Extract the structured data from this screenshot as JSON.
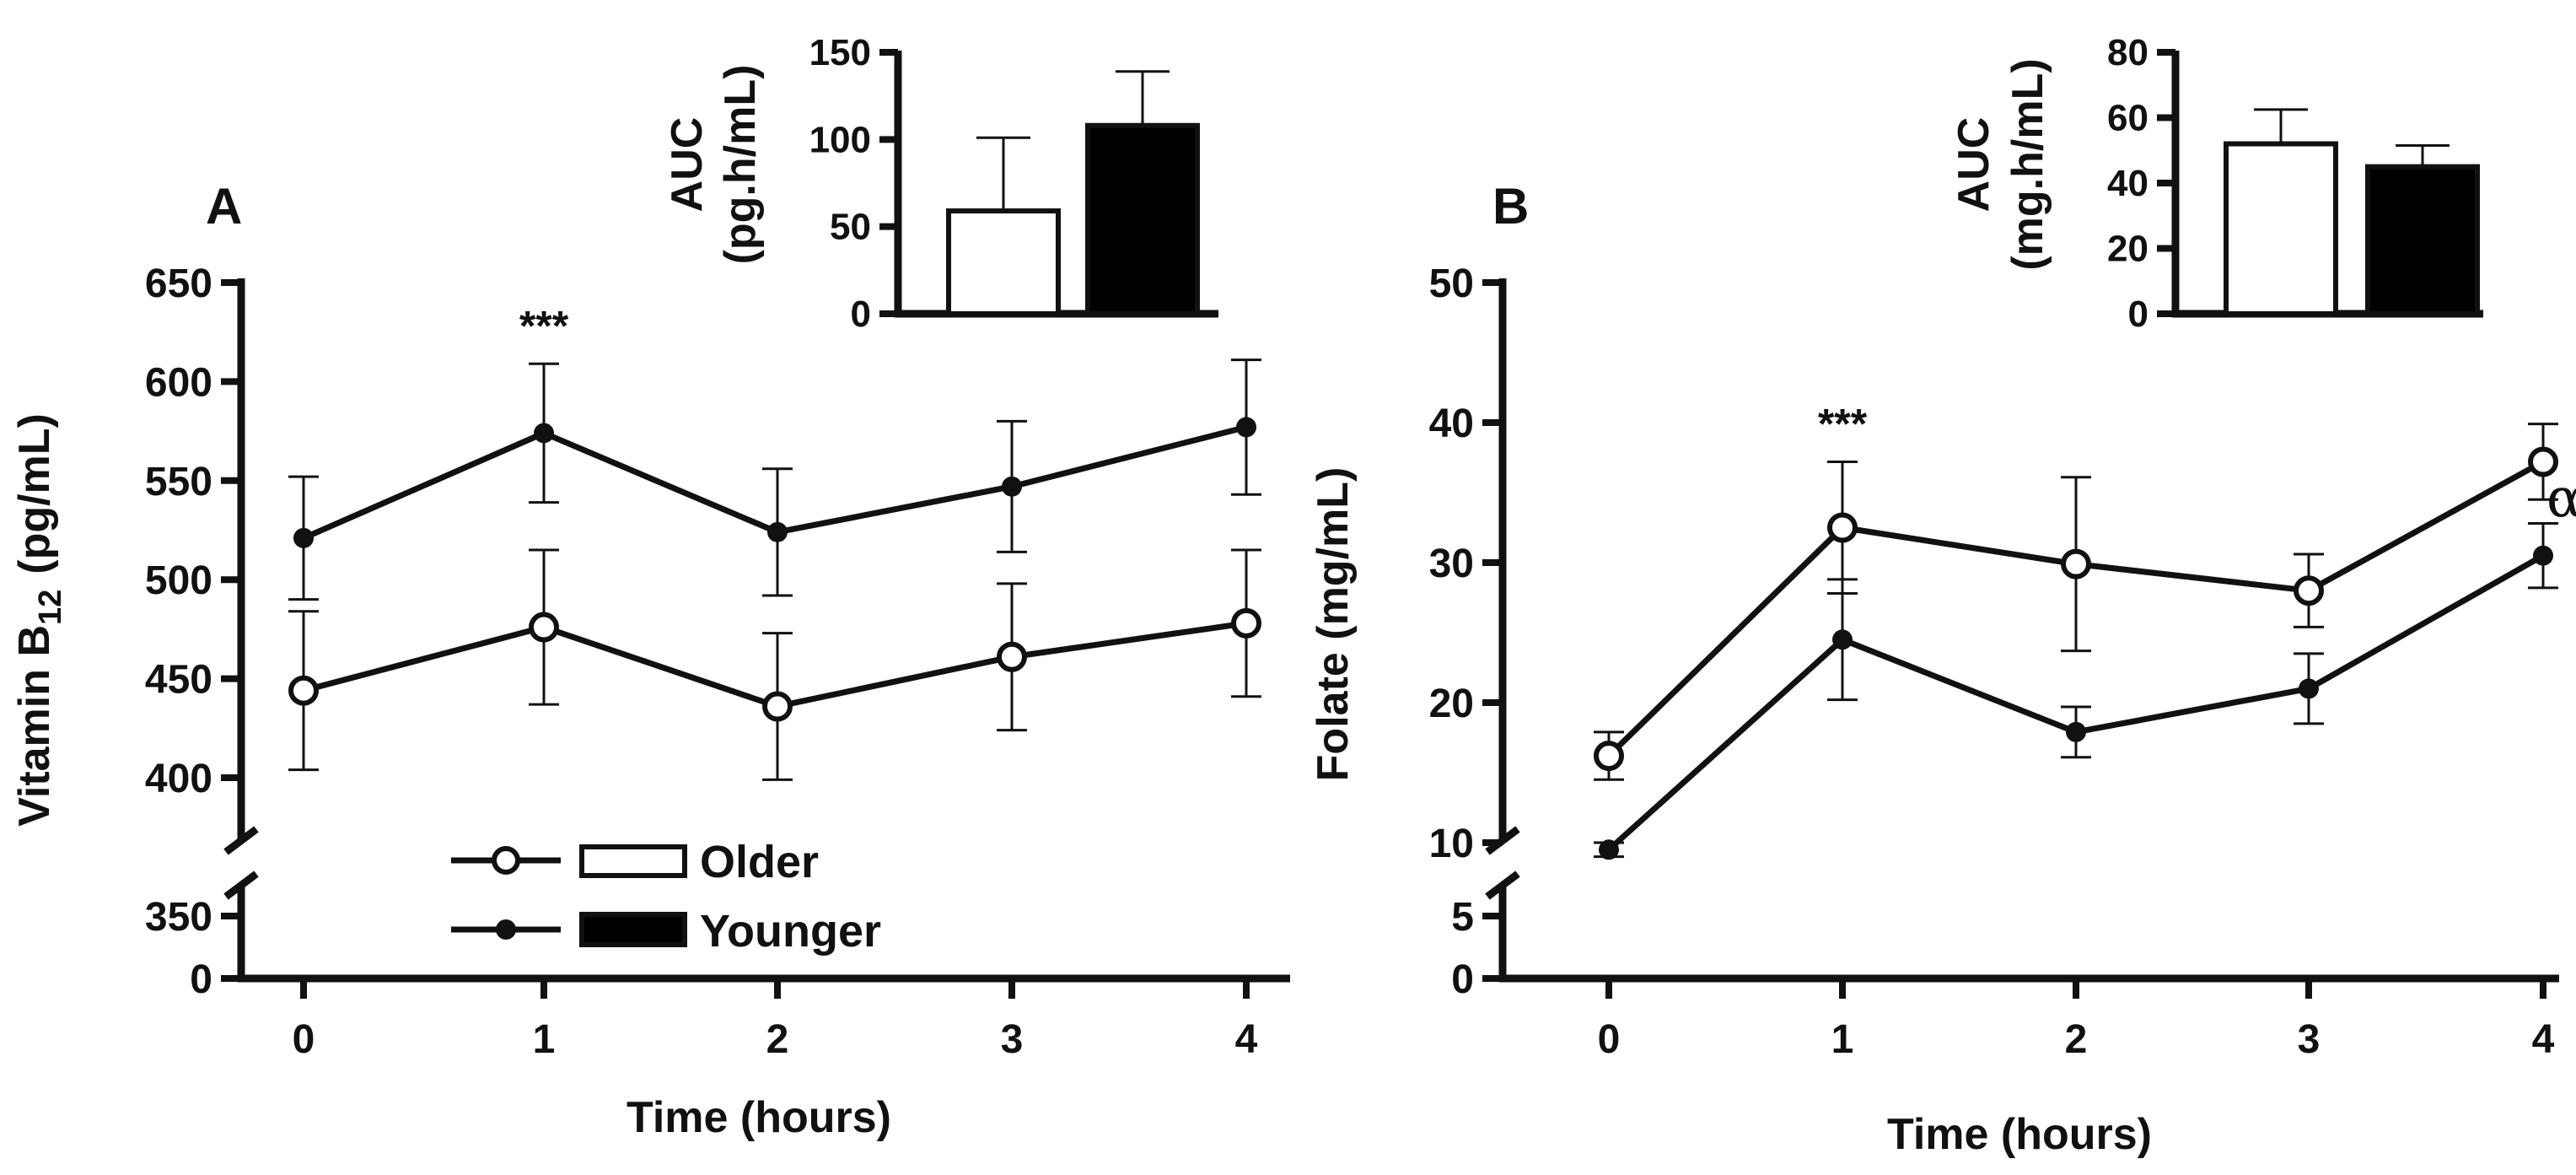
{
  "chart_data": [
    {
      "id": "A",
      "type": "line",
      "panel_label": "A",
      "xlabel": "Time (hours)",
      "ylabel": "Vitamin B12 (pg/mL)",
      "ylabel_main": "Vitamin B",
      "ylabel_sub": "12",
      "ylabel_unit": "(pg/mL)",
      "x": [
        0,
        1,
        2,
        3,
        4
      ],
      "x_ticks": [
        "0",
        "1",
        "2",
        "3",
        "4"
      ],
      "y_upper_range": [
        380,
        650
      ],
      "y_upper_ticks": [
        400,
        450,
        500,
        550,
        600,
        650
      ],
      "y_lower_ticks": [
        0,
        350
      ],
      "y_axis_break": true,
      "series": [
        {
          "name": "Older",
          "marker": "open-circle",
          "values": [
            444,
            476,
            436,
            461,
            478
          ],
          "errors": [
            40,
            39,
            37,
            37,
            37
          ]
        },
        {
          "name": "Younger",
          "marker": "filled-circle",
          "values": [
            521,
            574,
            524,
            547,
            577
          ],
          "errors": [
            31,
            35,
            32,
            33,
            34
          ]
        }
      ],
      "annotations": [
        {
          "x": 1,
          "text": "***"
        }
      ],
      "legend": {
        "position": "bottom-center",
        "entries": [
          {
            "name": "Older",
            "line_marker": "open-circle",
            "bar_fill": "#ffffff"
          },
          {
            "name": "Younger",
            "line_marker": "filled-circle",
            "bar_fill": "#000000"
          }
        ]
      },
      "inset": {
        "type": "bar",
        "ylabel_line1": "AUC",
        "ylabel_line2": "(pg.h/mL)",
        "ylim": [
          0,
          150
        ],
        "y_ticks": [
          0,
          50,
          100,
          150
        ],
        "bars": [
          {
            "name": "Older",
            "value": 59,
            "error": 42,
            "fill": "#ffffff"
          },
          {
            "name": "Younger",
            "value": 108,
            "error": 31,
            "fill": "#000000"
          }
        ]
      }
    },
    {
      "id": "B",
      "type": "line",
      "panel_label": "B",
      "xlabel": "Time (hours)",
      "ylabel": "Folate (mg/mL)",
      "x": [
        0,
        1,
        2,
        3,
        4
      ],
      "x_ticks": [
        "0",
        "1",
        "2",
        "3",
        "4"
      ],
      "y_upper_range": [
        8,
        50
      ],
      "y_upper_ticks": [
        10,
        20,
        30,
        40,
        50
      ],
      "y_lower_ticks": [
        0,
        5
      ],
      "y_axis_break": true,
      "series": [
        {
          "name": "Older",
          "marker": "open-circle",
          "values": [
            16.2,
            32.5,
            29.9,
            28.0,
            37.2
          ],
          "errors": [
            1.7,
            4.7,
            6.2,
            2.6,
            2.7
          ]
        },
        {
          "name": "Younger",
          "marker": "filled-circle",
          "values": [
            9.5,
            24.5,
            17.9,
            21.0,
            30.5
          ],
          "errors": [
            0.5,
            4.3,
            1.8,
            2.5,
            2.3
          ]
        }
      ],
      "annotations": [
        {
          "x": 1,
          "text": "***"
        },
        {
          "x": 4,
          "text": "α"
        }
      ],
      "inset": {
        "type": "bar",
        "ylabel_line1": "AUC",
        "ylabel_line2": "(mg.h/mL)",
        "ylim": [
          0,
          80
        ],
        "y_ticks": [
          0,
          20,
          40,
          60,
          80
        ],
        "bars": [
          {
            "name": "Older",
            "value": 52,
            "error": 10.5,
            "fill": "#ffffff"
          },
          {
            "name": "Younger",
            "value": 45,
            "error": 6.5,
            "fill": "#000000"
          }
        ]
      }
    }
  ]
}
